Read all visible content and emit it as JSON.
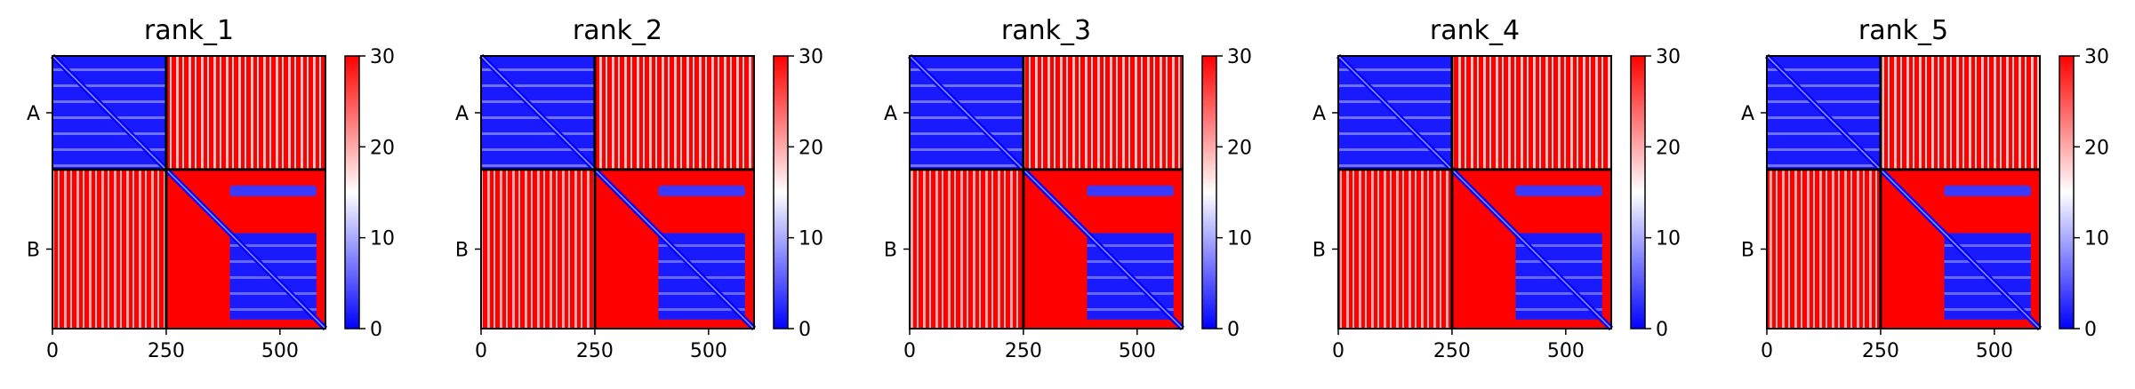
{
  "chart_data": [
    {
      "type": "heatmap",
      "title": "rank_1",
      "chains": [
        "A",
        "B"
      ],
      "chain_boundary": 250,
      "x_range": [
        0,
        600
      ],
      "y_range": [
        600,
        0
      ],
      "xticks": [
        0,
        250,
        500
      ],
      "colorbar": {
        "min": 0,
        "max": 30,
        "ticks": [
          0,
          10,
          20,
          30
        ],
        "colormap": [
          "#0000ff",
          "#ffffff",
          "#ff0000"
        ]
      }
    },
    {
      "type": "heatmap",
      "title": "rank_2",
      "chains": [
        "A",
        "B"
      ],
      "chain_boundary": 250,
      "x_range": [
        0,
        600
      ],
      "y_range": [
        600,
        0
      ],
      "xticks": [
        0,
        250,
        500
      ],
      "colorbar": {
        "min": 0,
        "max": 30,
        "ticks": [
          0,
          10,
          20,
          30
        ],
        "colormap": [
          "#0000ff",
          "#ffffff",
          "#ff0000"
        ]
      }
    },
    {
      "type": "heatmap",
      "title": "rank_3",
      "chains": [
        "A",
        "B"
      ],
      "chain_boundary": 250,
      "x_range": [
        0,
        600
      ],
      "y_range": [
        600,
        0
      ],
      "xticks": [
        0,
        250,
        500
      ],
      "colorbar": {
        "min": 0,
        "max": 30,
        "ticks": [
          0,
          10,
          20,
          30
        ],
        "colormap": [
          "#0000ff",
          "#ffffff",
          "#ff0000"
        ]
      }
    },
    {
      "type": "heatmap",
      "title": "rank_4",
      "chains": [
        "A",
        "B"
      ],
      "chain_boundary": 250,
      "x_range": [
        0,
        600
      ],
      "y_range": [
        600,
        0
      ],
      "xticks": [
        0,
        250,
        500
      ],
      "colorbar": {
        "min": 0,
        "max": 30,
        "ticks": [
          0,
          10,
          20,
          30
        ],
        "colormap": [
          "#0000ff",
          "#ffffff",
          "#ff0000"
        ]
      }
    },
    {
      "type": "heatmap",
      "title": "rank_5",
      "chains": [
        "A",
        "B"
      ],
      "chain_boundary": 250,
      "x_range": [
        0,
        600
      ],
      "y_range": [
        600,
        0
      ],
      "xticks": [
        0,
        250,
        500
      ],
      "colorbar": {
        "min": 0,
        "max": 30,
        "ticks": [
          0,
          10,
          20,
          30
        ],
        "colormap": [
          "#0000ff",
          "#ffffff",
          "#ff0000"
        ]
      }
    }
  ]
}
